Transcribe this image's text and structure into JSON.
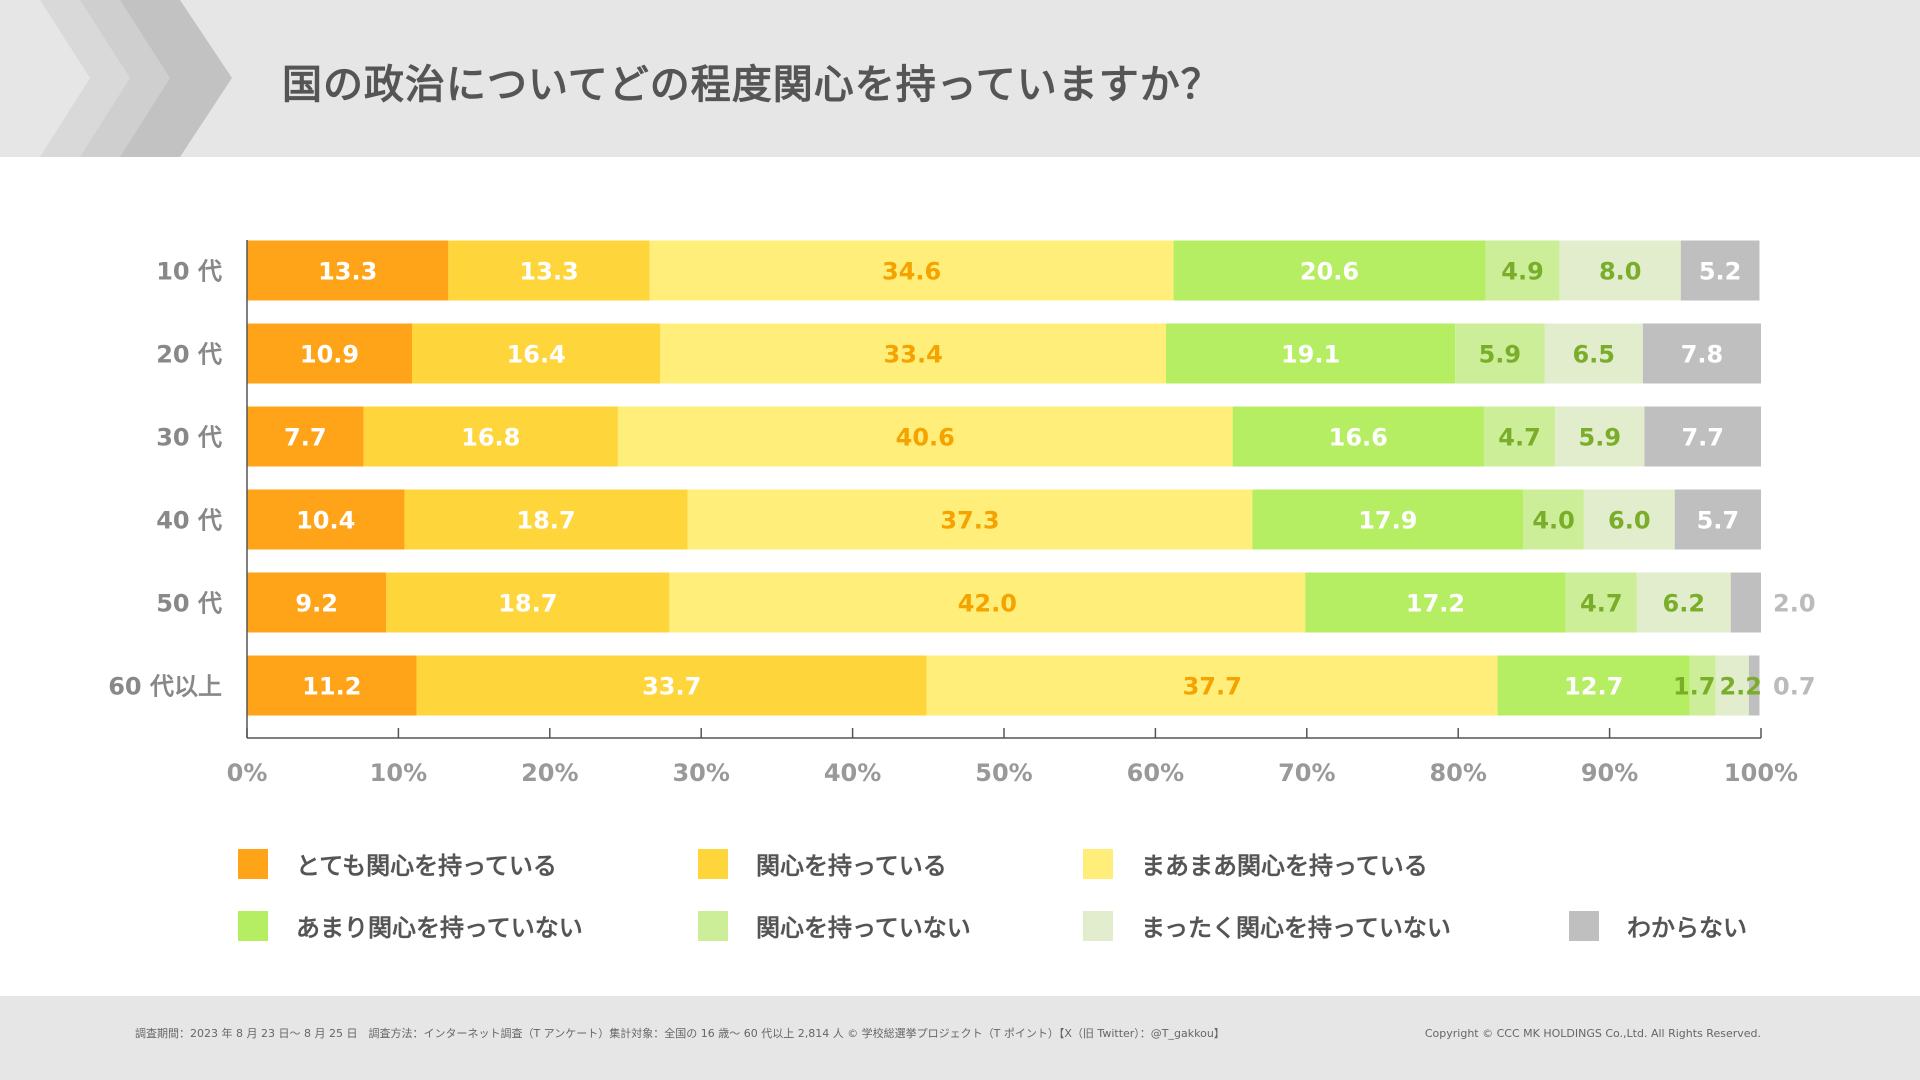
{
  "header": {
    "title": "国の政治についてどの程度関心を持っていますか？"
  },
  "footer": {
    "note": "調査期間：2023 年 8 月 23 日～ 8 月 25 日　調査方法：インターネット調査（T アンケート）集計対象：全国の 16 歳～ 60 代以上 2,814 人 © 学校総選挙プロジェクト（T ポイント）【X（旧 Twitter）：@T_gakkou】",
    "copyright": "Copyright © CCC MK HOLDINGS Co.,Ltd. All Rights Reserved."
  },
  "chart_data": {
    "type": "bar",
    "orientation": "horizontal",
    "stacked": true,
    "percent": true,
    "categories": [
      "10 代",
      "20 代",
      "30 代",
      "40 代",
      "50 代",
      "60 代以上"
    ],
    "xlim": [
      0,
      100
    ],
    "xticks": [
      "0%",
      "10%",
      "20%",
      "30%",
      "40%",
      "50%",
      "60%",
      "70%",
      "80%",
      "90%",
      "100%"
    ],
    "legend_position": "bottom",
    "series": [
      {
        "name": "とても関心を持っている",
        "color": "#FFA418",
        "label_color": "#FFFFFF",
        "values": [
          13.3,
          10.9,
          7.7,
          10.4,
          9.2,
          11.2
        ]
      },
      {
        "name": "関心を持っている",
        "color": "#FFD53C",
        "label_color": "#FFFFFF",
        "values": [
          13.3,
          16.4,
          16.8,
          18.7,
          18.7,
          33.7
        ]
      },
      {
        "name": "まあまあ関心を持っている",
        "color": "#FFEE7A",
        "label_color": "#F5A300",
        "values": [
          34.6,
          33.4,
          40.6,
          37.3,
          42.0,
          37.7
        ]
      },
      {
        "name": "あまり関心を持っていない",
        "color": "#B5EE63",
        "label_color": "#FFFFFF",
        "values": [
          20.6,
          19.1,
          16.6,
          17.9,
          17.2,
          12.7
        ]
      },
      {
        "name": "関心を持っていない",
        "color": "#CCEE99",
        "label_color": "#7AAE2A",
        "values": [
          4.9,
          5.9,
          4.7,
          4.0,
          4.7,
          1.7
        ]
      },
      {
        "name": "まったく関心を持っていない",
        "color": "#E2EDCD",
        "label_color": "#7AAE2A",
        "values": [
          8.0,
          6.5,
          5.9,
          6.0,
          6.2,
          2.2
        ]
      },
      {
        "name": "わからない",
        "color": "#BFBFBF",
        "label_color": "#FFFFFF",
        "values": [
          5.2,
          7.8,
          7.7,
          5.7,
          2.0,
          0.7
        ]
      }
    ]
  }
}
